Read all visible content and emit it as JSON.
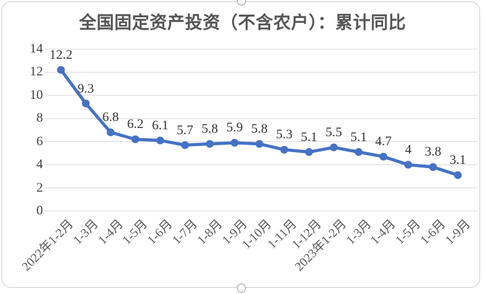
{
  "chart_data": {
    "type": "line",
    "title": "全国固定资产投资（不含农户）：累计同比",
    "categories": [
      "2022年1-2月",
      "1-3月",
      "1-4月",
      "1-5月",
      "1-6月",
      "1-7月",
      "1-8月",
      "1-9月",
      "1-10月",
      "1-11月",
      "1-12月",
      "2023年1-2月",
      "1-3月",
      "1-4月",
      "1-5月",
      "1-6月",
      "1-9月"
    ],
    "values": [
      12.2,
      9.3,
      6.8,
      6.2,
      6.1,
      5.7,
      5.8,
      5.9,
      5.8,
      5.3,
      5.1,
      5.5,
      5.1,
      4.7,
      4,
      3.8,
      3.1
    ],
    "data_labels": [
      "12.2",
      "9.3",
      "6.8",
      "6.2",
      "6.1",
      "5.7",
      "5.8",
      "5.9",
      "5.8",
      "5.3",
      "5.1",
      "5.5",
      "5.1",
      "4.7",
      "4",
      "3.8",
      "3.1"
    ],
    "y_ticks": [
      14,
      12,
      10,
      8,
      6,
      4,
      2,
      0
    ],
    "ylim": [
      0,
      14
    ],
    "xlabel": "",
    "ylabel": "",
    "grid": true,
    "legend": "none",
    "marker": "circle",
    "colors": {
      "line": "#4472C4",
      "marker": "#4472C4",
      "gridline": "#D9D9D9",
      "title_text": "#555555",
      "axis_text": "#404040",
      "data_label_text": "#333333",
      "category_text": "#595959",
      "frame_border": "#CDCDCD",
      "handle_border": "#9B9B9B",
      "background": "#FFFFFF"
    }
  }
}
